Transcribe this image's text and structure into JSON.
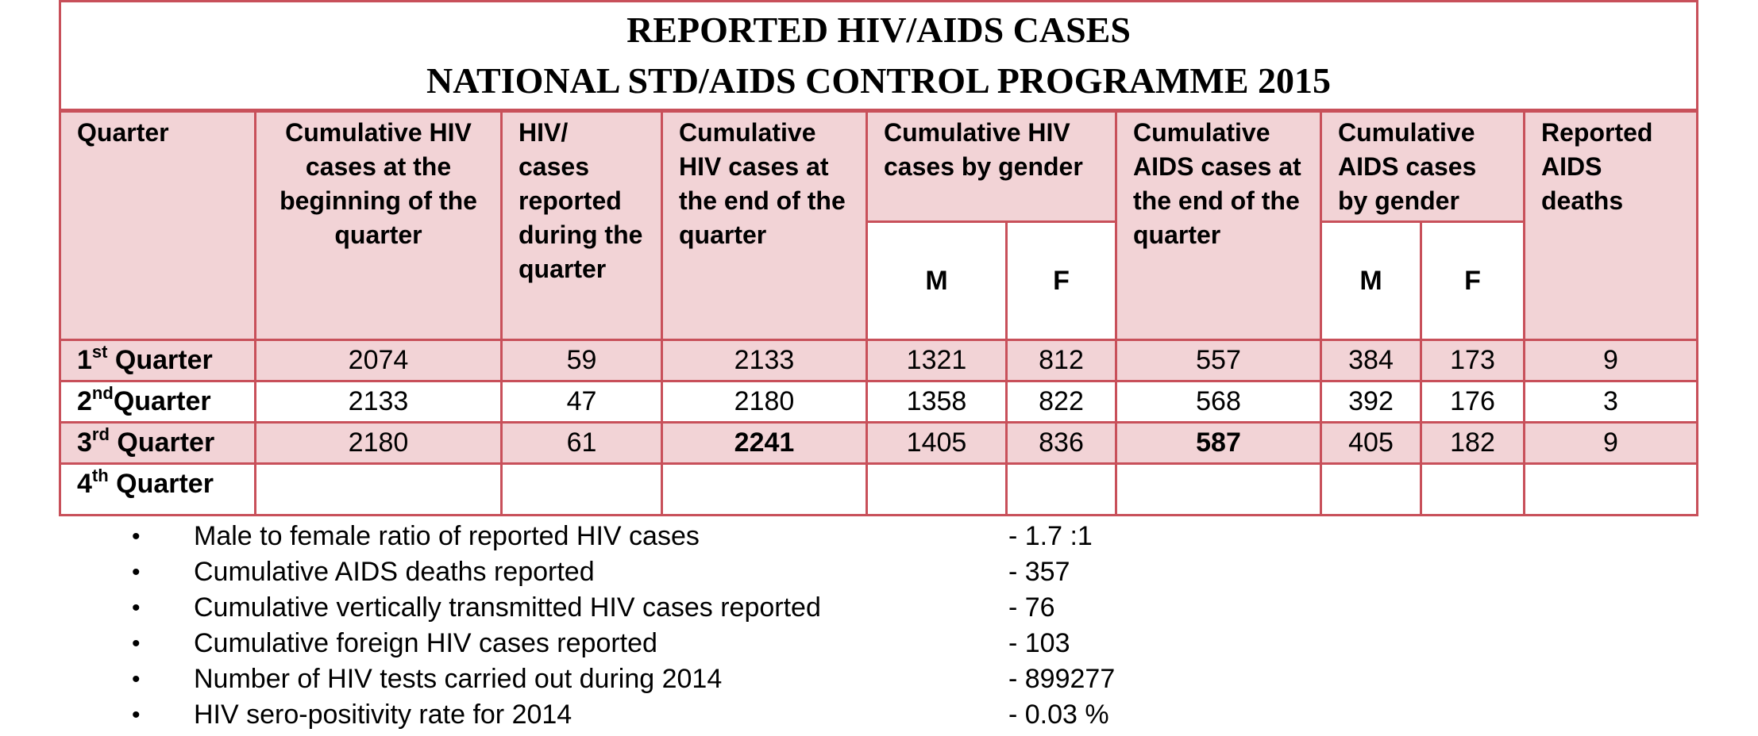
{
  "title": {
    "line1": "REPORTED HIV/AIDS CASES",
    "line2": "NATIONAL STD/AIDS CONTROL PROGRAMME 2015"
  },
  "headers": {
    "quarter": "Quarter",
    "cum_begin": "Cumulative HIV cases at the beginning of the quarter",
    "reported_during": "HIV/ cases reported during the quarter",
    "cum_end": "Cumulative HIV cases at the end of the quarter",
    "hiv_by_gender": "Cumulative HIV cases by gender",
    "aids_end": "Cumulative AIDS cases at the end of the quarter",
    "aids_by_gender": "Cumulative AIDS cases by gender",
    "aids_deaths": "Reported AIDS deaths",
    "male": "M",
    "female": "F"
  },
  "rows": [
    {
      "num": "1",
      "sup": "st",
      "label": " Quarter",
      "cum_begin": "2074",
      "reported": "59",
      "cum_end": "2133",
      "hiv_m": "1321",
      "hiv_f": "812",
      "aids_end": "557",
      "aids_m": "384",
      "aids_f": "173",
      "deaths": "9"
    },
    {
      "num": "2",
      "sup": "nd",
      "label": "Quarter",
      "cum_begin": "2133",
      "reported": "47",
      "cum_end": "2180",
      "hiv_m": "1358",
      "hiv_f": "822",
      "aids_end": "568",
      "aids_m": "392",
      "aids_f": "176",
      "deaths": "3"
    },
    {
      "num": "3",
      "sup": "rd",
      "label": " Quarter",
      "cum_begin": "2180",
      "reported": "61",
      "cum_end": "2241",
      "hiv_m": "1405",
      "hiv_f": "836",
      "aids_end": "587",
      "aids_m": "405",
      "aids_f": "182",
      "deaths": "9"
    },
    {
      "num": "4",
      "sup": "th",
      "label": " Quarter"
    }
  ],
  "stats": [
    {
      "label": "Male to female ratio of reported HIV cases",
      "value": "- 1.7 :1"
    },
    {
      "label": "Cumulative AIDS deaths reported",
      "value": "- 357"
    },
    {
      "label": "Cumulative vertically transmitted HIV cases reported",
      "value": "- 76"
    },
    {
      "label": "Cumulative foreign HIV cases reported",
      "value": "- 103"
    },
    {
      "label": "Number of HIV tests carried out during 2014",
      "value": "- 899277"
    },
    {
      "label": "HIV sero-positivity rate for 2014",
      "value": "- 0.03 %"
    }
  ],
  "colors": {
    "border": "#c8505a",
    "header_fill": "#f2d3d6"
  }
}
